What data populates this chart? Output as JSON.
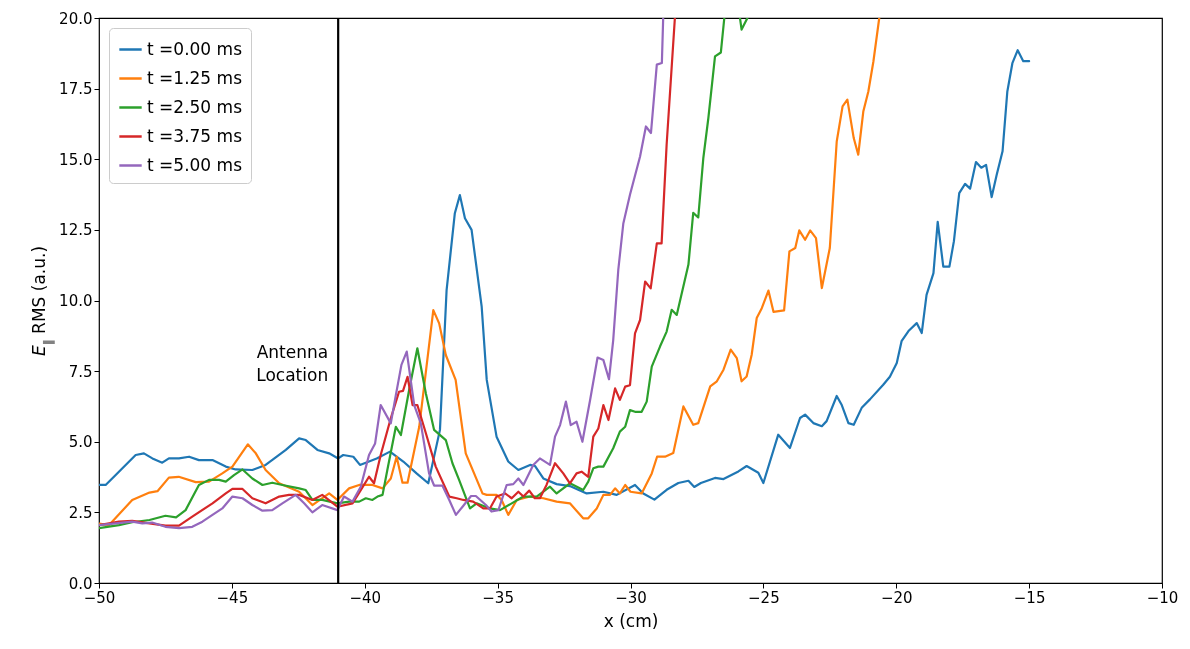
{
  "chart_data": {
    "type": "line",
    "xlabel": "x (cm)",
    "ylabel": "E$_{∥}$ RMS (a.u.)",
    "legend": "top left",
    "line_style": "solid",
    "xlim": [
      -50,
      -10
    ],
    "ylim": [
      0,
      20
    ],
    "xticks": [
      {
        "value": -50,
        "label": "−50"
      },
      {
        "value": -45,
        "label": "−45"
      },
      {
        "value": -40,
        "label": "−40"
      },
      {
        "value": -35,
        "label": "−35"
      },
      {
        "value": -30,
        "label": "−30"
      },
      {
        "value": -25,
        "label": "−25"
      },
      {
        "value": -20,
        "label": "−20"
      },
      {
        "value": -15,
        "label": "−15"
      },
      {
        "value": -10,
        "label": "−10"
      }
    ],
    "yticks": [
      {
        "value": 0,
        "label": "0.0"
      },
      2.5,
      {
        "value": 5,
        "label": "5.0"
      },
      7.5,
      {
        "value": 10,
        "label": "10.0"
      },
      12.5,
      {
        "value": 15,
        "label": "15.0"
      },
      17.5,
      {
        "value": 20,
        "label": "20.0"
      }
    ],
    "ref_lines": [
      {
        "axis": "x",
        "value": -41,
        "label": "Antenna\nLocation",
        "color": "#000000"
      }
    ],
    "series": [
      {
        "name": "t =0.00 ms",
        "color": "#1f77b4",
        "x": [
          -50,
          -49.75,
          -49.25,
          -48.62,
          -48.31,
          -47.99,
          -47.62,
          -47.37,
          -46.99,
          -46.61,
          -46.24,
          -45.73,
          -45.23,
          -44.86,
          -44.23,
          -43.73,
          -42.97,
          -42.47,
          -42.22,
          -41.78,
          -41.34,
          -41.0,
          -40.81,
          -40.43,
          -40.18,
          -39.55,
          -39.05,
          -38.55,
          -38.05,
          -37.61,
          -37.17,
          -36.92,
          -36.61,
          -36.42,
          -36.23,
          -35.98,
          -35.6,
          -35.41,
          -35.04,
          -34.6,
          -34.22,
          -33.78,
          -33.59,
          -33.28,
          -32.78,
          -32.28,
          -31.65,
          -31.02,
          -30.52,
          -29.83,
          -29.52,
          -29.1,
          -28.64,
          -28.2,
          -27.82,
          -27.6,
          -27.35,
          -26.82,
          -26.5,
          -25.94,
          -25.63,
          -25.19,
          -25.0,
          -24.44,
          -24.0,
          -23.62,
          -23.43,
          -23.12,
          -22.8,
          -22.62,
          -22.24,
          -22.05,
          -21.8,
          -21.6,
          -21.3,
          -20.99,
          -20.49,
          -20.24,
          -19.98,
          -19.8,
          -19.54,
          -19.23,
          -19.04,
          -18.86,
          -18.6,
          -18.44,
          -18.23,
          -18.0,
          -17.83,
          -17.63,
          -17.41,
          -17.22,
          -17.0,
          -16.8,
          -16.62,
          -16.41,
          -16.22,
          -16.0,
          -15.82,
          -15.63,
          -15.43,
          -15.22,
          -15.0
        ],
        "values": [
          3.47,
          3.47,
          3.94,
          4.53,
          4.59,
          4.41,
          4.26,
          4.41,
          4.41,
          4.47,
          4.35,
          4.35,
          4.12,
          4.02,
          4.0,
          4.18,
          4.71,
          5.12,
          5.06,
          4.71,
          4.59,
          4.41,
          4.53,
          4.47,
          4.18,
          4.41,
          4.65,
          4.3,
          3.88,
          3.53,
          5.42,
          10.37,
          13.09,
          13.73,
          12.91,
          12.5,
          9.78,
          7.19,
          5.18,
          4.3,
          4.0,
          4.18,
          4.14,
          3.7,
          3.5,
          3.43,
          3.17,
          3.23,
          3.12,
          3.47,
          3.17,
          2.95,
          3.3,
          3.54,
          3.62,
          3.4,
          3.54,
          3.72,
          3.68,
          3.95,
          4.14,
          3.9,
          3.54,
          5.25,
          4.78,
          5.84,
          5.96,
          5.66,
          5.55,
          5.73,
          6.62,
          6.3,
          5.66,
          5.6,
          6.2,
          6.5,
          7.02,
          7.3,
          7.79,
          8.56,
          8.92,
          9.2,
          8.85,
          10.2,
          10.97,
          12.78,
          11.2,
          11.2,
          12.1,
          13.8,
          14.13,
          13.96,
          14.9,
          14.7,
          14.8,
          13.66,
          14.45,
          15.28,
          17.4,
          18.4,
          18.86,
          18.47,
          18.47
        ]
      },
      {
        "name": "t =1.25 ms",
        "color": "#ff7f0e",
        "x": [
          -50,
          -49.62,
          -48.75,
          -48.1,
          -47.8,
          -47.37,
          -47.0,
          -46.36,
          -45.86,
          -45.36,
          -44.98,
          -44.4,
          -44.1,
          -43.73,
          -43.22,
          -42.47,
          -41.97,
          -41.34,
          -41.03,
          -40.59,
          -40.21,
          -39.71,
          -39.33,
          -39.02,
          -38.8,
          -38.58,
          -38.39,
          -37.95,
          -37.42,
          -37.2,
          -36.95,
          -36.58,
          -36.2,
          -35.57,
          -35.41,
          -35.04,
          -34.85,
          -34.6,
          -34.28,
          -33.78,
          -33.28,
          -32.78,
          -32.28,
          -31.78,
          -31.59,
          -31.27,
          -31.02,
          -30.77,
          -30.58,
          -30.4,
          -30.2,
          -30.0,
          -29.58,
          -29.2,
          -29.0,
          -28.7,
          -28.39,
          -28.01,
          -27.64,
          -27.45,
          -27.0,
          -26.75,
          -26.5,
          -26.23,
          -26.0,
          -25.82,
          -25.63,
          -25.44,
          -25.25,
          -25.06,
          -24.81,
          -24.62,
          -24.22,
          -24.02,
          -23.8,
          -23.65,
          -23.43,
          -23.24,
          -23.02,
          -22.8,
          -22.5,
          -22.24,
          -22.02,
          -21.84,
          -21.6,
          -21.43,
          -21.24,
          -21.05,
          -20.86,
          -20.64
        ],
        "values": [
          2.1,
          2.05,
          2.94,
          3.2,
          3.25,
          3.73,
          3.76,
          3.57,
          3.59,
          3.88,
          4.12,
          4.91,
          4.59,
          4.0,
          3.53,
          3.23,
          2.76,
          3.17,
          2.94,
          3.35,
          3.47,
          3.47,
          3.35,
          3.7,
          4.47,
          3.55,
          3.55,
          5.53,
          9.66,
          9.19,
          8.07,
          7.19,
          4.59,
          3.17,
          3.12,
          3.12,
          2.94,
          2.41,
          2.94,
          3.06,
          3.0,
          2.88,
          2.82,
          2.29,
          2.29,
          2.64,
          3.12,
          3.12,
          3.35,
          3.17,
          3.47,
          3.23,
          3.17,
          3.88,
          4.47,
          4.47,
          4.6,
          6.25,
          5.6,
          5.66,
          6.96,
          7.14,
          7.55,
          8.26,
          7.96,
          7.14,
          7.31,
          8.08,
          9.38,
          9.73,
          10.35,
          9.6,
          9.65,
          11.74,
          11.86,
          12.48,
          12.15,
          12.48,
          12.21,
          10.44,
          11.86,
          15.63,
          16.87,
          17.11,
          15.75,
          15.16,
          16.69,
          17.4,
          18.46,
          20
        ]
      },
      {
        "name": "t =2.50 ms",
        "color": "#2ca02c",
        "x": [
          -50,
          -49.25,
          -48.75,
          -48.1,
          -47.5,
          -47.1,
          -46.74,
          -46.24,
          -45.86,
          -45.48,
          -45.23,
          -44.92,
          -44.6,
          -44.23,
          -43.85,
          -43.48,
          -43.1,
          -42.47,
          -42.22,
          -41.97,
          -41.6,
          -41.03,
          -40.59,
          -40.21,
          -39.96,
          -39.71,
          -39.52,
          -39.33,
          -39.15,
          -38.83,
          -38.64,
          -38.33,
          -38.02,
          -37.7,
          -37.39,
          -36.95,
          -36.7,
          -36.45,
          -36.04,
          -35.79,
          -35.29,
          -34.91,
          -34.47,
          -34.03,
          -33.53,
          -33.03,
          -32.78,
          -32.28,
          -31.78,
          -31.59,
          -31.4,
          -31.21,
          -31.02,
          -30.65,
          -30.4,
          -30.2,
          -30.02,
          -29.83,
          -29.58,
          -29.39,
          -29.2,
          -28.89,
          -28.64,
          -28.45,
          -28.26,
          -27.82,
          -27.64,
          -27.45,
          -27.26,
          -27.07,
          -26.82,
          -26.6,
          -26.47,
          -26.2,
          -25.88,
          -25.82,
          -25.6
        ],
        "values": [
          1.94,
          2.05,
          2.15,
          2.23,
          2.38,
          2.32,
          2.58,
          3.47,
          3.65,
          3.65,
          3.59,
          3.82,
          4.02,
          3.7,
          3.47,
          3.55,
          3.47,
          3.35,
          3.29,
          2.94,
          2.94,
          2.82,
          2.88,
          2.88,
          3.0,
          2.94,
          3.06,
          3.12,
          4.0,
          5.53,
          5.24,
          6.83,
          8.31,
          6.71,
          5.42,
          5.06,
          4.24,
          3.65,
          2.64,
          2.82,
          2.64,
          2.58,
          2.82,
          3.06,
          3.06,
          3.41,
          3.17,
          3.53,
          3.29,
          3.59,
          4.06,
          4.12,
          4.12,
          4.77,
          5.36,
          5.53,
          6.12,
          6.06,
          6.06,
          6.42,
          7.66,
          8.37,
          8.9,
          9.67,
          9.49,
          11.27,
          13.1,
          12.94,
          15.04,
          16.46,
          18.64,
          18.78,
          20,
          null,
          20,
          19.59,
          20
        ]
      },
      {
        "name": "t =3.75 ms",
        "color": "#d62728",
        "x": [
          -50,
          -49.25,
          -48.75,
          -48.1,
          -47.5,
          -46.99,
          -46.49,
          -45.73,
          -45.23,
          -44.98,
          -44.6,
          -44.23,
          -43.73,
          -43.22,
          -42.85,
          -42.47,
          -41.97,
          -41.6,
          -41.03,
          -40.46,
          -40.15,
          -39.84,
          -39.65,
          -39.4,
          -39.02,
          -38.71,
          -38.56,
          -38.39,
          -38.2,
          -38.02,
          -37.7,
          -37.33,
          -36.82,
          -36.54,
          -36.29,
          -35.92,
          -35.54,
          -35.29,
          -35.04,
          -34.72,
          -34.47,
          -34.22,
          -34.03,
          -33.81,
          -33.6,
          -33.41,
          -33.16,
          -32.84,
          -32.53,
          -32.28,
          -32.03,
          -31.84,
          -31.59,
          -31.4,
          -31.21,
          -31.02,
          -30.83,
          -30.58,
          -30.4,
          -30.2,
          -30.02,
          -29.83,
          -29.64,
          -29.45,
          -29.24,
          -29.01,
          -28.83,
          -28.64,
          -28.33
        ],
        "values": [
          2.05,
          2.17,
          2.2,
          2.11,
          2.03,
          2.03,
          2.35,
          2.82,
          3.17,
          3.33,
          3.33,
          3.0,
          2.82,
          3.06,
          3.12,
          3.12,
          2.94,
          3.12,
          2.7,
          2.82,
          3.29,
          3.76,
          3.53,
          4.53,
          5.83,
          6.77,
          6.8,
          7.3,
          6.3,
          6.3,
          5.3,
          4.12,
          3.06,
          3.0,
          2.94,
          2.88,
          2.64,
          2.64,
          3.06,
          3.17,
          3.0,
          3.23,
          3.06,
          3.27,
          3.0,
          3.0,
          3.47,
          4.24,
          3.88,
          3.53,
          3.88,
          3.94,
          3.76,
          5.18,
          5.47,
          6.3,
          5.77,
          6.89,
          6.48,
          6.95,
          7.0,
          8.84,
          9.31,
          10.67,
          10.43,
          12.02,
          12.02,
          15.52,
          20
        ]
      },
      {
        "name": "t =5.00 ms",
        "color": "#9467bd",
        "x": [
          -50,
          -49.37,
          -48.75,
          -48.37,
          -48.0,
          -47.5,
          -46.99,
          -46.49,
          -46.11,
          -45.73,
          -45.36,
          -44.98,
          -44.6,
          -44.23,
          -43.85,
          -43.48,
          -43.1,
          -42.6,
          -42.28,
          -41.97,
          -41.6,
          -41.03,
          -40.78,
          -40.46,
          -40.15,
          -39.84,
          -39.61,
          -39.4,
          -39.02,
          -38.83,
          -38.62,
          -38.42,
          -38.14,
          -37.89,
          -37.58,
          -37.39,
          -37.08,
          -36.82,
          -36.57,
          -36.32,
          -36.0,
          -35.82,
          -35.44,
          -35.23,
          -34.97,
          -34.66,
          -34.41,
          -34.22,
          -34.03,
          -33.66,
          -33.41,
          -33.03,
          -32.84,
          -32.65,
          -32.43,
          -32.25,
          -32.03,
          -31.81,
          -31.52,
          -31.24,
          -31.02,
          -30.81,
          -30.65,
          -30.46,
          -30.27,
          -30.02,
          -29.64,
          -29.42,
          -29.23,
          -29.01,
          -28.82,
          -28.77
        ],
        "values": [
          2.05,
          2.11,
          2.17,
          2.11,
          2.14,
          1.99,
          1.94,
          1.99,
          2.17,
          2.41,
          2.64,
          3.06,
          3.0,
          2.76,
          2.56,
          2.58,
          2.82,
          3.12,
          2.82,
          2.5,
          2.76,
          2.58,
          3.06,
          2.88,
          3.41,
          4.53,
          4.94,
          6.3,
          5.65,
          6.65,
          7.72,
          8.19,
          6.3,
          5.65,
          3.88,
          3.45,
          3.45,
          2.94,
          2.41,
          2.7,
          3.08,
          3.08,
          2.76,
          2.53,
          2.58,
          3.47,
          3.5,
          3.7,
          3.47,
          4.18,
          4.41,
          4.18,
          5.18,
          5.59,
          6.42,
          5.59,
          5.71,
          5.0,
          6.48,
          7.98,
          7.89,
          7.21,
          8.6,
          11.08,
          12.73,
          13.74,
          15.1,
          16.16,
          15.93,
          18.35,
          18.41,
          20
        ]
      }
    ]
  }
}
